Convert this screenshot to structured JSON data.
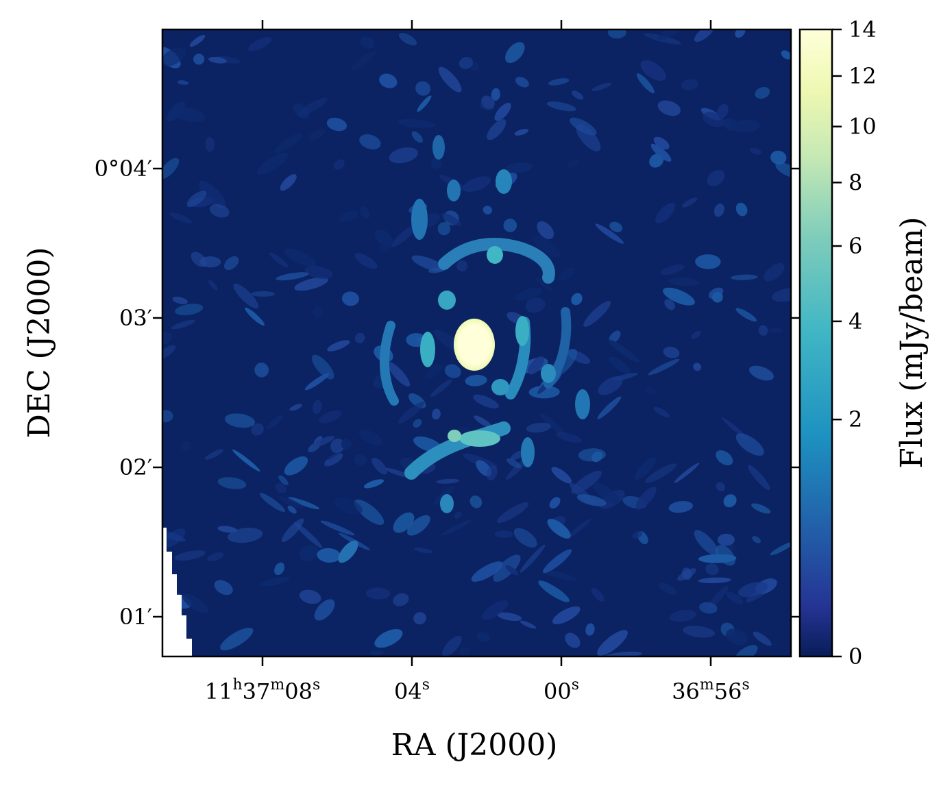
{
  "chart_data": {
    "type": "heatmap",
    "title": "",
    "xlabel": "RA (J2000)",
    "ylabel": "DEC (J2000)",
    "colorbar_label": "Flux (mJy/beam)",
    "colormap": [
      "#081d58",
      "#253494",
      "#225ea8",
      "#1d91c0",
      "#41b6c4",
      "#7fcdbb",
      "#c7e9b4",
      "#edf8b1",
      "#ffffd9"
    ],
    "x_ticks": [
      {
        "label_main": "11",
        "sup1": "h",
        "mid": "37",
        "sup2": "m",
        "tail": "08",
        "sup3": "s"
      },
      {
        "label_main": "04",
        "sup1": "s"
      },
      {
        "label_main": "00",
        "sup1": "s"
      },
      {
        "label_main": "36",
        "sup1": "m",
        "mid": "56",
        "sup2": "s"
      }
    ],
    "y_ticks": [
      "0°04′",
      "03′",
      "02′",
      "01′"
    ],
    "colorbar_ticks": [
      {
        "label": "14",
        "value": 14
      },
      {
        "label": "12",
        "value": 12
      },
      {
        "label": "10",
        "value": 10
      },
      {
        "label": "8",
        "value": 8
      },
      {
        "label": "6",
        "value": 6
      },
      {
        "label": "4",
        "value": 4
      },
      {
        "label": "2",
        "value": 2
      },
      {
        "label": "0",
        "value": 0
      }
    ],
    "colorbar_range": [
      0,
      14
    ],
    "colorbar_scale": "sqrt",
    "grid": false,
    "features": {
      "central_source_peak": 14,
      "background_level": 0.3,
      "sidelobe_level": 3
    }
  }
}
